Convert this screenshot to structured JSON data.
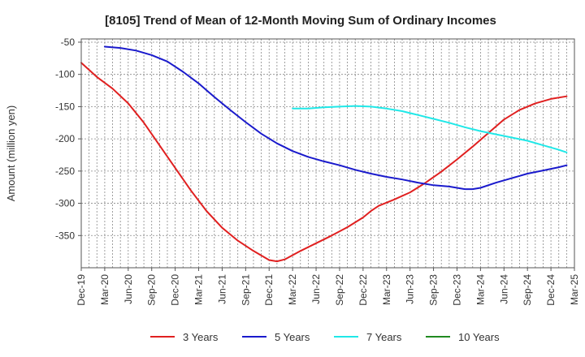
{
  "chart_data": {
    "type": "line",
    "title": "[8105]  Trend of Mean of 12-Month Moving Sum of Ordinary Incomes",
    "xlabel": "",
    "ylabel": "Amount (million yen)",
    "ylim": [
      -400,
      -45
    ],
    "yticks": [
      -50,
      -100,
      -150,
      -200,
      -250,
      -300,
      -350
    ],
    "xlim": [
      0,
      63
    ],
    "x_tick_labels": [
      "Dec-19",
      "Mar-20",
      "Jun-20",
      "Sep-20",
      "Dec-20",
      "Mar-21",
      "Jun-21",
      "Sep-21",
      "Dec-21",
      "Mar-22",
      "Jun-22",
      "Sep-22",
      "Dec-22",
      "Mar-23",
      "Jun-23",
      "Sep-23",
      "Dec-23",
      "Mar-24",
      "Jun-24",
      "Sep-24",
      "Dec-24",
      "Mar-25"
    ],
    "grid": true,
    "legend_position": "bottom",
    "series": [
      {
        "name": "3 Years",
        "color": "#e02020",
        "points": [
          [
            0,
            -82
          ],
          [
            2,
            -104
          ],
          [
            4,
            -122
          ],
          [
            6,
            -145
          ],
          [
            8,
            -175
          ],
          [
            10,
            -210
          ],
          [
            12,
            -245
          ],
          [
            14,
            -280
          ],
          [
            16,
            -312
          ],
          [
            18,
            -338
          ],
          [
            20,
            -358
          ],
          [
            22,
            -374
          ],
          [
            24,
            -388
          ],
          [
            25,
            -390
          ],
          [
            26,
            -387
          ],
          [
            28,
            -374
          ],
          [
            30,
            -362
          ],
          [
            32,
            -350
          ],
          [
            34,
            -337
          ],
          [
            36,
            -322
          ],
          [
            37,
            -312
          ],
          [
            38,
            -304
          ],
          [
            40,
            -294
          ],
          [
            42,
            -283
          ],
          [
            44,
            -268
          ],
          [
            46,
            -251
          ],
          [
            48,
            -232
          ],
          [
            50,
            -212
          ],
          [
            52,
            -191
          ],
          [
            54,
            -170
          ],
          [
            56,
            -155
          ],
          [
            58,
            -145
          ],
          [
            60,
            -138
          ],
          [
            62,
            -134
          ]
        ]
      },
      {
        "name": "5 Years",
        "color": "#1a1acc",
        "points": [
          [
            3,
            -57
          ],
          [
            5,
            -59
          ],
          [
            7,
            -63
          ],
          [
            9,
            -70
          ],
          [
            11,
            -80
          ],
          [
            13,
            -96
          ],
          [
            15,
            -114
          ],
          [
            17,
            -135
          ],
          [
            19,
            -155
          ],
          [
            21,
            -174
          ],
          [
            23,
            -192
          ],
          [
            25,
            -207
          ],
          [
            27,
            -219
          ],
          [
            29,
            -228
          ],
          [
            31,
            -235
          ],
          [
            33,
            -241
          ],
          [
            35,
            -248
          ],
          [
            37,
            -254
          ],
          [
            39,
            -259
          ],
          [
            41,
            -263
          ],
          [
            43,
            -268
          ],
          [
            45,
            -272
          ],
          [
            47,
            -274
          ],
          [
            49,
            -278
          ],
          [
            50,
            -278
          ],
          [
            51,
            -276
          ],
          [
            53,
            -268
          ],
          [
            55,
            -261
          ],
          [
            57,
            -254
          ],
          [
            59,
            -249
          ],
          [
            61,
            -244
          ],
          [
            62,
            -241
          ]
        ]
      },
      {
        "name": "7 Years",
        "color": "#20e8e8",
        "points": [
          [
            27,
            -153
          ],
          [
            29,
            -153
          ],
          [
            31,
            -151
          ],
          [
            33,
            -150
          ],
          [
            35,
            -149
          ],
          [
            37,
            -150
          ],
          [
            39,
            -153
          ],
          [
            41,
            -157
          ],
          [
            43,
            -163
          ],
          [
            45,
            -169
          ],
          [
            47,
            -175
          ],
          [
            49,
            -182
          ],
          [
            51,
            -188
          ],
          [
            53,
            -193
          ],
          [
            55,
            -198
          ],
          [
            57,
            -203
          ],
          [
            59,
            -210
          ],
          [
            61,
            -217
          ],
          [
            62,
            -221
          ]
        ]
      },
      {
        "name": "10 Years",
        "color": "#208a20",
        "points": []
      }
    ]
  }
}
